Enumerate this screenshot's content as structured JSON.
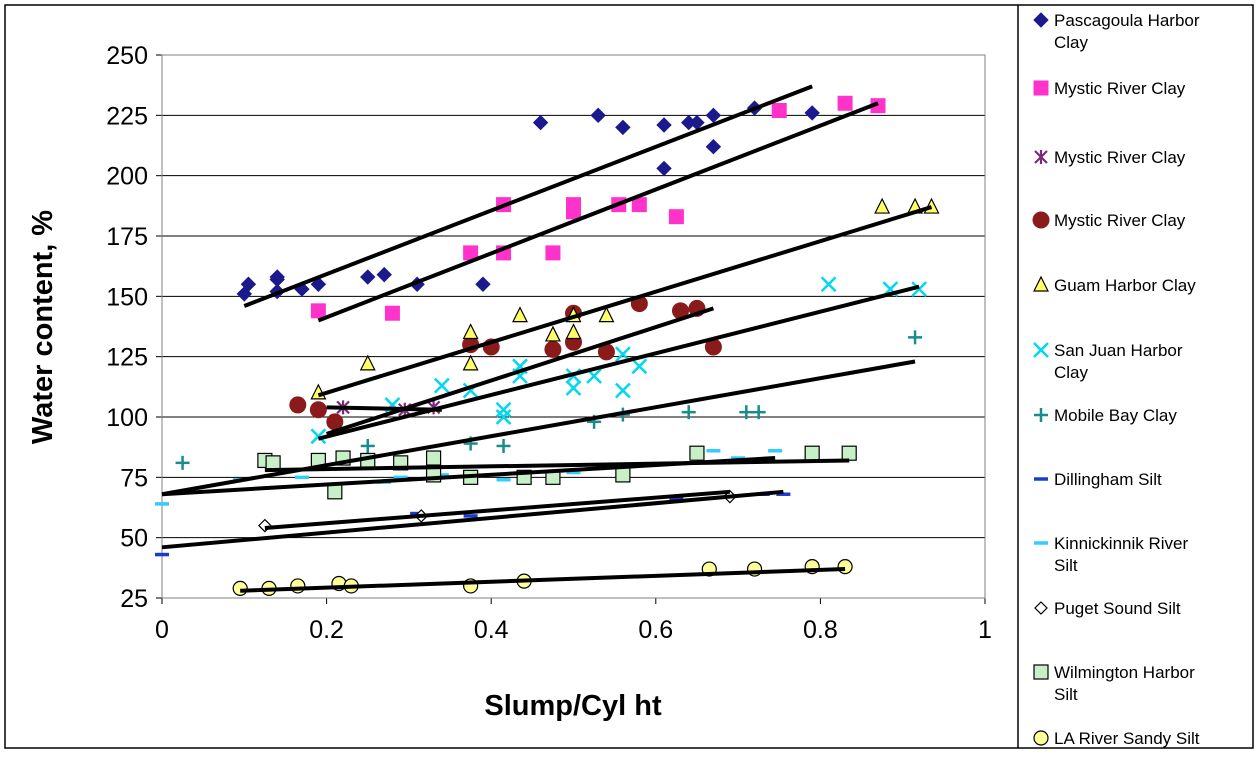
{
  "chart_data": {
    "type": "scatter",
    "title": "",
    "xlabel": "Slump/Cyl ht",
    "ylabel": "Water content, %",
    "xlim": [
      0,
      1
    ],
    "ylim": [
      25,
      250
    ],
    "x_ticks": [
      "0",
      "0.2",
      "0.4",
      "0.6",
      "0.8",
      "1"
    ],
    "y_ticks": [
      "25",
      "50",
      "75",
      "100",
      "125",
      "150",
      "175",
      "200",
      "225",
      "250"
    ],
    "grid": "horizontal",
    "legend_position": "right",
    "series": [
      {
        "name": "Pascagoula Harbor Clay",
        "marker": "diamond",
        "color": "#1a1a8c",
        "points": [
          [
            0.1,
            151
          ],
          [
            0.105,
            155
          ],
          [
            0.14,
            152
          ],
          [
            0.14,
            157
          ],
          [
            0.14,
            158
          ],
          [
            0.17,
            153
          ],
          [
            0.19,
            155
          ],
          [
            0.25,
            158
          ],
          [
            0.27,
            159
          ],
          [
            0.31,
            155
          ],
          [
            0.39,
            155
          ],
          [
            0.46,
            222
          ],
          [
            0.53,
            225
          ],
          [
            0.56,
            220
          ],
          [
            0.61,
            221
          ],
          [
            0.61,
            203
          ],
          [
            0.64,
            222
          ],
          [
            0.65,
            222
          ],
          [
            0.67,
            225
          ],
          [
            0.67,
            212
          ],
          [
            0.72,
            228
          ],
          [
            0.79,
            226
          ]
        ],
        "trend": [
          [
            0.1,
            146
          ],
          [
            0.79,
            237
          ]
        ]
      },
      {
        "name": "Mystic River Clay",
        "marker": "square",
        "color": "#ff33cc",
        "points": [
          [
            0.19,
            144
          ],
          [
            0.28,
            143
          ],
          [
            0.375,
            168
          ],
          [
            0.415,
            168
          ],
          [
            0.415,
            188
          ],
          [
            0.475,
            168
          ],
          [
            0.5,
            185
          ],
          [
            0.5,
            188
          ],
          [
            0.555,
            188
          ],
          [
            0.58,
            188
          ],
          [
            0.625,
            183
          ],
          [
            0.75,
            227
          ],
          [
            0.83,
            230
          ],
          [
            0.87,
            229
          ]
        ],
        "trend": [
          [
            0.19,
            140
          ],
          [
            0.87,
            230
          ]
        ]
      },
      {
        "name": "Mystic River Clay",
        "marker": "star",
        "color": "#7b2a7b",
        "points": [
          [
            0.22,
            104
          ],
          [
            0.295,
            103
          ],
          [
            0.33,
            104
          ]
        ],
        "trend": [
          [
            0.2,
            104
          ],
          [
            0.34,
            103
          ]
        ]
      },
      {
        "name": "Mystic River Clay",
        "marker": "circle",
        "color": "#8b1a1a",
        "points": [
          [
            0.165,
            105
          ],
          [
            0.19,
            103
          ],
          [
            0.21,
            98
          ],
          [
            0.375,
            130
          ],
          [
            0.4,
            129
          ],
          [
            0.475,
            128
          ],
          [
            0.5,
            131
          ],
          [
            0.5,
            143
          ],
          [
            0.54,
            127
          ],
          [
            0.58,
            147
          ],
          [
            0.63,
            144
          ],
          [
            0.65,
            145
          ],
          [
            0.67,
            129
          ]
        ],
        "trend": [
          [
            0.2,
            93
          ],
          [
            0.67,
            145
          ]
        ]
      },
      {
        "name": "Guam Harbor Clay",
        "marker": "triangle",
        "color": "#ffff66",
        "points": [
          [
            0.19,
            110
          ],
          [
            0.25,
            122
          ],
          [
            0.375,
            135
          ],
          [
            0.375,
            122
          ],
          [
            0.435,
            142
          ],
          [
            0.475,
            134
          ],
          [
            0.5,
            135
          ],
          [
            0.5,
            142
          ],
          [
            0.54,
            142
          ],
          [
            0.875,
            187
          ],
          [
            0.915,
            187
          ],
          [
            0.935,
            187
          ]
        ],
        "trend": [
          [
            0.19,
            109
          ],
          [
            0.935,
            187
          ]
        ]
      },
      {
        "name": "San Juan Harbor Clay",
        "marker": "x",
        "color": "#00d8f0",
        "points": [
          [
            0.19,
            92
          ],
          [
            0.28,
            105
          ],
          [
            0.34,
            113
          ],
          [
            0.375,
            111
          ],
          [
            0.415,
            100
          ],
          [
            0.415,
            103
          ],
          [
            0.435,
            117
          ],
          [
            0.435,
            121
          ],
          [
            0.5,
            112
          ],
          [
            0.5,
            117
          ],
          [
            0.525,
            117
          ],
          [
            0.56,
            111
          ],
          [
            0.56,
            126
          ],
          [
            0.58,
            121
          ],
          [
            0.81,
            155
          ],
          [
            0.885,
            153
          ],
          [
            0.92,
            153
          ]
        ],
        "trend": [
          [
            0.19,
            91
          ],
          [
            0.92,
            154
          ]
        ]
      },
      {
        "name": "Mobile Bay Clay",
        "marker": "plus",
        "color": "#1a8c8c",
        "points": [
          [
            0.025,
            81
          ],
          [
            0.25,
            88
          ],
          [
            0.375,
            89
          ],
          [
            0.415,
            88
          ],
          [
            0.525,
            98
          ],
          [
            0.56,
            101
          ],
          [
            0.64,
            102
          ],
          [
            0.71,
            102
          ],
          [
            0.725,
            102
          ],
          [
            0.915,
            133
          ]
        ],
        "trend": [
          [
            0.0,
            68
          ],
          [
            0.915,
            123
          ]
        ]
      },
      {
        "name": "Dillingham Silt",
        "marker": "dash",
        "color": "#1a3ccc",
        "points": [
          [
            0.0,
            43
          ],
          [
            0.31,
            60
          ],
          [
            0.375,
            59
          ],
          [
            0.625,
            66
          ],
          [
            0.73,
            68
          ],
          [
            0.755,
            68
          ]
        ],
        "trend": [
          [
            0.0,
            46
          ],
          [
            0.755,
            69
          ]
        ]
      },
      {
        "name": "Kinnickinnik River Silt",
        "marker": "dash",
        "color": "#33ccff",
        "points": [
          [
            0.0,
            64
          ],
          [
            0.095,
            74
          ],
          [
            0.17,
            75
          ],
          [
            0.27,
            73
          ],
          [
            0.29,
            75
          ],
          [
            0.34,
            76
          ],
          [
            0.415,
            74
          ],
          [
            0.44,
            74
          ],
          [
            0.5,
            77
          ],
          [
            0.56,
            76
          ],
          [
            0.67,
            86
          ],
          [
            0.7,
            83
          ],
          [
            0.745,
            86
          ]
        ],
        "trend": [
          [
            0.0,
            68
          ],
          [
            0.745,
            83
          ]
        ]
      },
      {
        "name": "Puget Sound Silt",
        "marker": "diamond-open",
        "color": "#000000",
        "points": [
          [
            0.125,
            55
          ],
          [
            0.315,
            59
          ],
          [
            0.69,
            67
          ]
        ],
        "trend": [
          [
            0.125,
            54
          ],
          [
            0.69,
            69
          ]
        ]
      },
      {
        "name": "Wilmington Harbor Silt",
        "marker": "square-open",
        "color": "#c8f0c8",
        "points": [
          [
            0.125,
            82
          ],
          [
            0.135,
            81
          ],
          [
            0.19,
            82
          ],
          [
            0.21,
            69
          ],
          [
            0.22,
            83
          ],
          [
            0.25,
            82
          ],
          [
            0.29,
            81
          ],
          [
            0.33,
            76
          ],
          [
            0.33,
            83
          ],
          [
            0.375,
            75
          ],
          [
            0.44,
            75
          ],
          [
            0.475,
            75
          ],
          [
            0.56,
            76
          ],
          [
            0.65,
            85
          ],
          [
            0.79,
            85
          ],
          [
            0.835,
            85
          ]
        ],
        "trend": [
          [
            0.125,
            78
          ],
          [
            0.835,
            82
          ]
        ]
      },
      {
        "name": "LA River Sandy Silt",
        "marker": "circle-open",
        "color": "#ffff99",
        "points": [
          [
            0.095,
            29
          ],
          [
            0.13,
            29
          ],
          [
            0.165,
            30
          ],
          [
            0.215,
            31
          ],
          [
            0.23,
            30
          ],
          [
            0.375,
            30
          ],
          [
            0.44,
            32
          ],
          [
            0.665,
            37
          ],
          [
            0.72,
            37
          ],
          [
            0.79,
            38
          ],
          [
            0.83,
            38
          ]
        ],
        "trend": [
          [
            0.095,
            28
          ],
          [
            0.83,
            37
          ]
        ]
      }
    ]
  }
}
